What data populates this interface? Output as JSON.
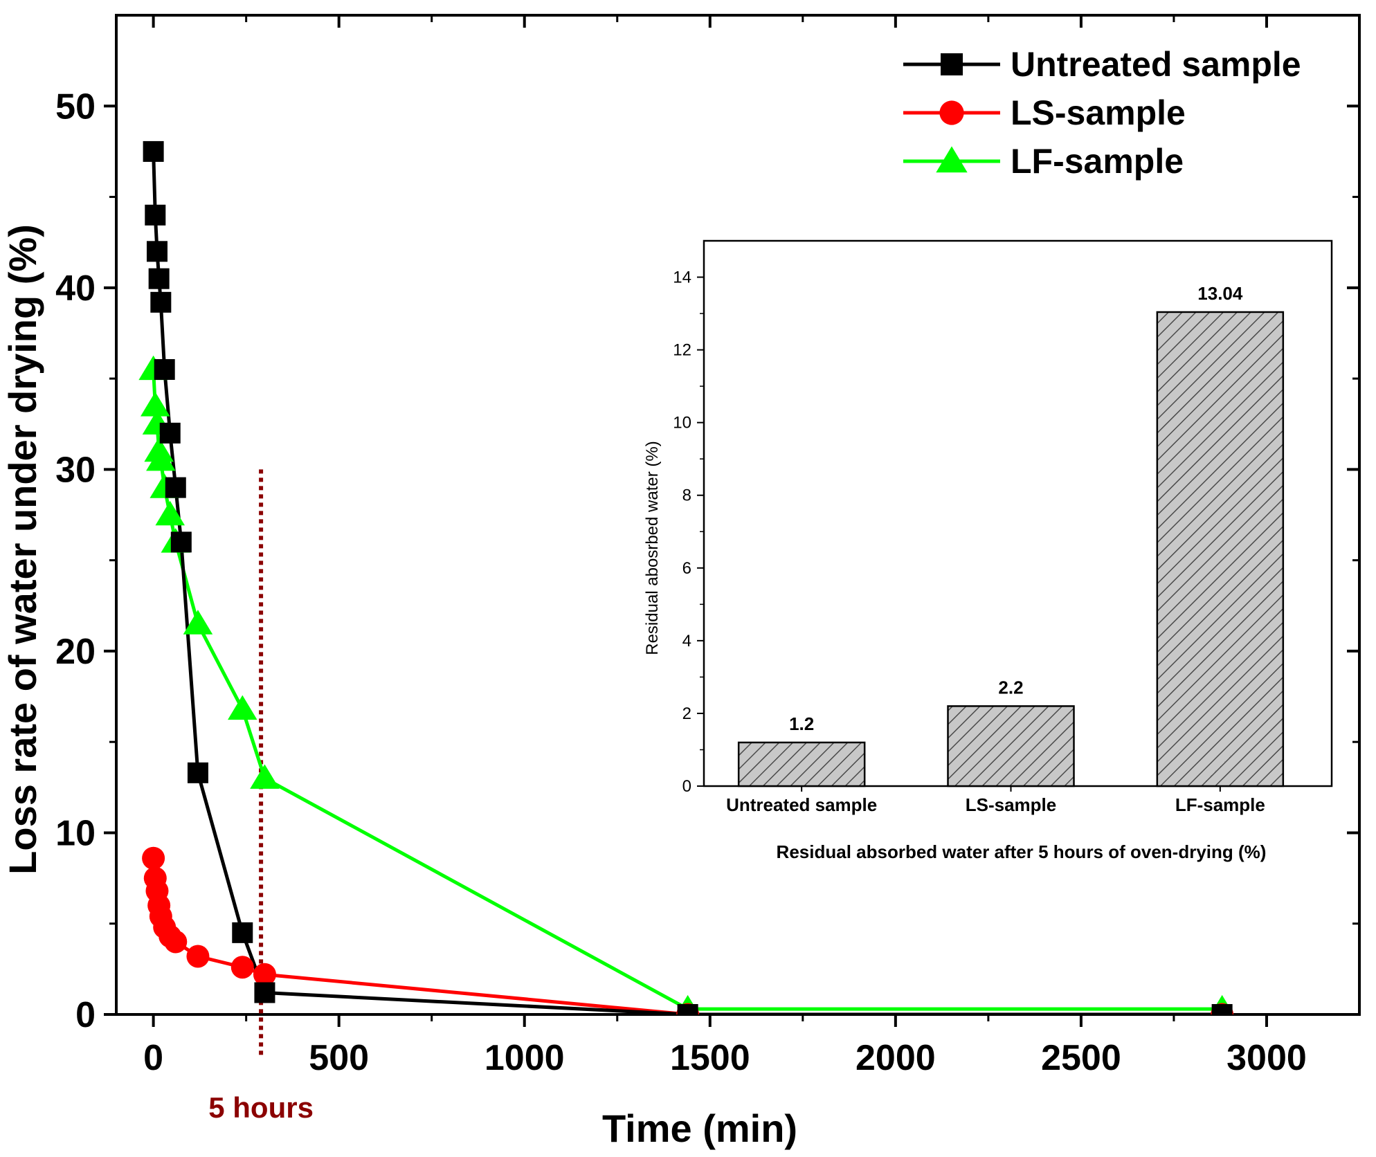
{
  "chart_data": [
    {
      "type": "line",
      "xlabel": "Time  (min)",
      "ylabel": "Loss rate of water under drying (%)",
      "xlim": [
        -100,
        3250
      ],
      "ylim": [
        0,
        55
      ],
      "xticks": [
        0,
        500,
        1000,
        1500,
        2000,
        2500,
        3000
      ],
      "yticks": [
        0,
        10,
        20,
        30,
        40,
        50
      ],
      "xtick_labels": [
        "0",
        "500",
        "1000",
        "1500",
        "2000",
        "2500",
        "3000"
      ],
      "ytick_labels": [
        "0",
        "10",
        "20",
        "30",
        "40",
        "50"
      ],
      "legend_position": "top-right",
      "series": [
        {
          "name": "Untreated sample",
          "color": "#000000",
          "marker": "square",
          "x": [
            0,
            5,
            10,
            15,
            20,
            30,
            45,
            60,
            75,
            120,
            240,
            300,
            1440,
            2880
          ],
          "y": [
            47.5,
            44,
            42,
            40.5,
            39.2,
            35.5,
            32,
            29,
            26,
            13.3,
            4.5,
            1.2,
            0,
            0
          ]
        },
        {
          "name": "LS-sample",
          "color": "#ff0000",
          "marker": "circle",
          "x": [
            0,
            5,
            10,
            15,
            20,
            30,
            45,
            60,
            120,
            240,
            300,
            1440,
            2880
          ],
          "y": [
            8.6,
            7.5,
            6.8,
            6.0,
            5.4,
            4.8,
            4.3,
            4.0,
            3.2,
            2.6,
            2.2,
            0,
            0
          ]
        },
        {
          "name": "LF-sample",
          "color": "#00ff00",
          "marker": "triangle",
          "x": [
            0,
            5,
            10,
            15,
            20,
            30,
            45,
            60,
            120,
            240,
            300,
            1440,
            2880
          ],
          "y": [
            35.5,
            33.5,
            32.5,
            31,
            30.5,
            29,
            27.5,
            26,
            21.5,
            16.8,
            13,
            0.3,
            0.3
          ]
        }
      ],
      "annotations": [
        {
          "text": "5 hours",
          "x": 290,
          "color": "#8b0000",
          "line_top_y": 30
        }
      ]
    },
    {
      "type": "bar",
      "title": "",
      "xlabel": "Residual absorbed water after 5 hours of oven-drying  (%)",
      "ylabel": "Residual abosrbed water  (%)",
      "categories": [
        "Untreated sample",
        "LS-sample",
        "LF-sample"
      ],
      "values": [
        1.2,
        2.2,
        13.04
      ],
      "value_labels": [
        "1.2",
        "2.2",
        "13.04"
      ],
      "ylim": [
        0,
        15
      ],
      "yticks": [
        0,
        2,
        4,
        6,
        8,
        10,
        12,
        14
      ],
      "ytick_labels": [
        "0",
        "2",
        "4",
        "6",
        "8",
        "10",
        "12",
        "14"
      ],
      "bar_fill": "#c8c8c8",
      "hatch": "diagonal"
    }
  ]
}
